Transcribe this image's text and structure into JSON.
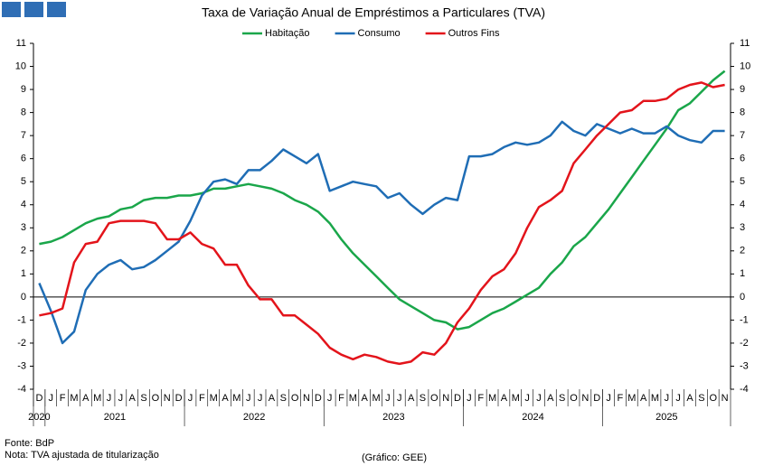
{
  "chart_data": {
    "type": "line",
    "title": "Taxa de Variação Anual de Empréstimos a Particulares (TVA)",
    "categories": [
      "D",
      "J",
      "F",
      "M",
      "A",
      "M",
      "J",
      "J",
      "A",
      "S",
      "O",
      "N",
      "D",
      "J",
      "F",
      "M",
      "A",
      "M",
      "J",
      "J",
      "A",
      "S",
      "O",
      "N",
      "D",
      "J",
      "F",
      "M",
      "A",
      "M",
      "J",
      "J",
      "A",
      "S",
      "O",
      "N",
      "D",
      "J",
      "F",
      "M",
      "A",
      "M",
      "J",
      "J",
      "A",
      "S",
      "O",
      "N",
      "D",
      "J",
      "F",
      "M",
      "A",
      "M",
      "J",
      "J",
      "A",
      "S",
      "O",
      "N"
    ],
    "category_years": [
      "2020",
      "2021",
      "2021",
      "2021",
      "2021",
      "2021",
      "2021",
      "2021",
      "2021",
      "2021",
      "2021",
      "2021",
      "2021",
      "2022",
      "2022",
      "2022",
      "2022",
      "2022",
      "2022",
      "2022",
      "2022",
      "2022",
      "2022",
      "2022",
      "2022",
      "2023",
      "2023",
      "2023",
      "2023",
      "2023",
      "2023",
      "2023",
      "2023",
      "2023",
      "2023",
      "2023",
      "2023",
      "2024",
      "2024",
      "2024",
      "2024",
      "2024",
      "2024",
      "2024",
      "2024",
      "2024",
      "2024",
      "2024",
      "2024",
      "2025",
      "2025",
      "2025",
      "2025",
      "2025",
      "2025",
      "2025",
      "2025",
      "2025",
      "2025",
      "2025"
    ],
    "series": [
      {
        "name": "Habitação",
        "color": "#1aa64a",
        "values": [
          2.3,
          2.4,
          2.6,
          2.9,
          3.2,
          3.4,
          3.5,
          3.8,
          3.9,
          4.2,
          4.3,
          4.3,
          4.4,
          4.4,
          4.5,
          4.7,
          4.7,
          4.8,
          4.9,
          4.8,
          4.7,
          4.5,
          4.2,
          4.0,
          3.7,
          3.2,
          2.5,
          1.9,
          1.4,
          0.9,
          0.4,
          -0.1,
          -0.4,
          -0.7,
          -1.0,
          -1.1,
          -1.4,
          -1.3,
          -1.0,
          -0.7,
          -0.5,
          -0.2,
          0.1,
          0.4,
          1.0,
          1.5,
          2.2,
          2.6,
          3.2,
          3.8,
          4.5,
          5.2,
          5.9,
          6.6,
          7.3,
          8.1,
          8.4,
          8.9,
          9.4,
          9.8
        ]
      },
      {
        "name": "Consumo",
        "color": "#1f6db5",
        "values": [
          0.6,
          -0.6,
          -2.0,
          -1.5,
          0.3,
          1.0,
          1.4,
          1.6,
          1.2,
          1.3,
          1.6,
          2.0,
          2.4,
          3.3,
          4.4,
          5.0,
          5.1,
          4.9,
          5.5,
          5.5,
          5.9,
          6.4,
          6.1,
          5.8,
          6.2,
          4.6,
          4.8,
          5.0,
          4.9,
          4.8,
          4.3,
          4.5,
          4.0,
          3.6,
          4.0,
          4.3,
          4.2,
          6.1,
          6.1,
          6.2,
          6.5,
          6.7,
          6.6,
          6.7,
          7.0,
          7.6,
          7.2,
          7.0,
          7.5,
          7.3,
          7.1,
          7.3,
          7.1,
          7.1,
          7.4,
          7.0,
          6.8,
          6.7,
          7.2,
          7.2
        ]
      },
      {
        "name": "Outros Fins",
        "color": "#e3141b",
        "values": [
          -0.8,
          -0.7,
          -0.5,
          1.5,
          2.3,
          2.4,
          3.2,
          3.3,
          3.3,
          3.3,
          3.2,
          2.5,
          2.5,
          2.8,
          2.3,
          2.1,
          1.4,
          1.4,
          0.5,
          -0.1,
          -0.1,
          -0.8,
          -0.8,
          -1.2,
          -1.6,
          -2.2,
          -2.5,
          -2.7,
          -2.5,
          -2.6,
          -2.8,
          -2.9,
          -2.8,
          -2.4,
          -2.5,
          -2.0,
          -1.1,
          -0.5,
          0.3,
          0.9,
          1.2,
          1.9,
          3.0,
          3.9,
          4.2,
          4.6,
          5.8,
          6.4,
          7.0,
          7.5,
          8.0,
          8.1,
          8.5,
          8.5,
          8.6,
          9.0,
          9.2,
          9.3,
          9.1,
          9.2
        ]
      }
    ],
    "ylim": [
      -4,
      11
    ],
    "yticks": [
      -4,
      -3,
      -2,
      -1,
      0,
      1,
      2,
      3,
      4,
      5,
      6,
      7,
      8,
      9,
      10,
      11
    ],
    "y2lim": [
      -4,
      11
    ],
    "y2ticks": [
      -4,
      -3,
      -2,
      -1,
      0,
      1,
      2,
      3,
      4,
      5,
      6,
      7,
      8,
      9,
      10,
      11
    ],
    "source": "Fonte: BdP",
    "note": "Nota: TVA ajustada de titularização",
    "credit": "(Gráfico: GEE)"
  }
}
